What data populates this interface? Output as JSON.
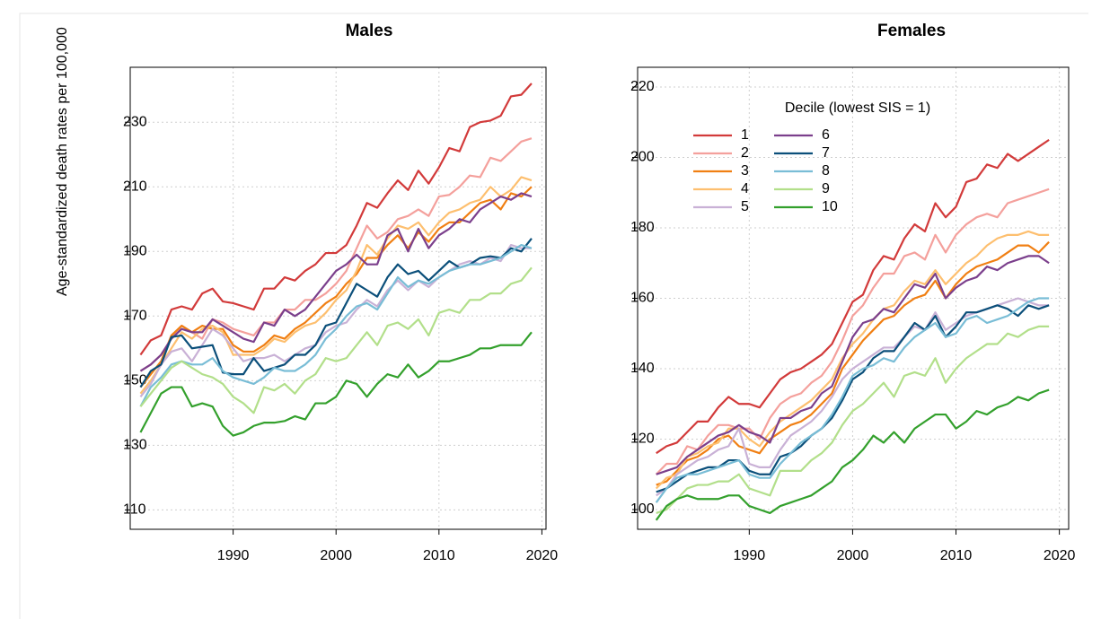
{
  "chart_data": [
    {
      "type": "line",
      "title": "Males",
      "ylabel": "Age-standardized death rates per 100,000",
      "x": [
        1981,
        1982,
        1983,
        1984,
        1985,
        1986,
        1987,
        1988,
        1989,
        1990,
        1991,
        1992,
        1993,
        1994,
        1995,
        1996,
        1997,
        1998,
        1999,
        2000,
        2001,
        2002,
        2003,
        2004,
        2005,
        2006,
        2007,
        2008,
        2009,
        2010,
        2011,
        2012,
        2013,
        2014,
        2015,
        2016,
        2017,
        2018,
        2019
      ],
      "xlim": [
        1980,
        2020.4
      ],
      "ylim": [
        104,
        247
      ],
      "xticks": [
        1990,
        2000,
        2010,
        2020
      ],
      "yticks": [
        110,
        130,
        150,
        170,
        190,
        210,
        230
      ],
      "grid": true,
      "series": [
        {
          "color": "#d23a3a",
          "values": [
            158,
            162.5,
            164,
            172,
            173,
            172,
            177,
            178.5,
            174.5,
            174,
            173,
            172,
            178.5,
            178.5,
            182,
            181,
            184,
            186,
            189.5,
            189.5,
            192,
            198,
            205,
            203.5,
            208,
            212,
            209,
            215,
            211,
            216,
            222,
            221,
            228.5,
            230,
            230.5,
            232,
            238,
            238.5,
            242
          ]
        },
        {
          "color": "#f4a09c",
          "values": [
            153,
            155,
            158,
            163,
            167,
            165,
            163,
            169,
            168,
            166,
            165,
            164,
            168,
            168,
            172,
            172,
            175,
            175,
            177,
            180,
            184,
            191,
            198,
            194,
            196,
            200,
            201,
            203,
            201,
            207,
            207.5,
            210,
            213.5,
            213,
            219,
            218,
            221,
            224,
            225
          ]
        },
        {
          "color": "#f07f13",
          "values": [
            148,
            152,
            156,
            164,
            167,
            165,
            167,
            166,
            166,
            161,
            159,
            159,
            161,
            164,
            163,
            166,
            168,
            171,
            174,
            176,
            180,
            183,
            188,
            188,
            192,
            195,
            191,
            196,
            193,
            197,
            199,
            199,
            202,
            205,
            206,
            203,
            208,
            207,
            210
          ]
        },
        {
          "color": "#fdbf6f",
          "values": [
            146,
            150,
            155,
            160,
            165,
            163,
            166,
            167,
            165,
            158,
            158,
            158,
            160,
            163,
            162,
            165,
            167,
            168,
            171,
            175,
            178,
            184,
            192,
            189,
            194,
            198,
            197,
            199,
            195,
            199,
            202,
            203,
            205,
            206,
            210,
            207,
            209,
            213,
            212
          ]
        },
        {
          "color": "#c9b1d6",
          "values": [
            145,
            149,
            155,
            159,
            160,
            156,
            161,
            166,
            164,
            160,
            156,
            157,
            157,
            158,
            156,
            158,
            160,
            161,
            165,
            167,
            168,
            172,
            175,
            173,
            178,
            181,
            178,
            181,
            179,
            182,
            184,
            186,
            187,
            186,
            188,
            187,
            192,
            191,
            191
          ]
        },
        {
          "color": "#7b3f8c",
          "values": [
            153,
            155,
            158,
            163,
            166,
            165,
            165,
            169,
            167,
            165,
            163,
            162,
            168,
            167,
            172,
            170,
            172,
            176,
            180,
            184,
            186,
            189,
            186,
            186,
            195,
            197,
            190,
            197,
            191,
            195,
            197,
            200,
            199,
            203,
            205,
            207,
            206,
            208,
            207
          ]
        },
        {
          "color": "#0b4f7a",
          "values": [
            148,
            153,
            155,
            163.5,
            164,
            160,
            160.5,
            161,
            152.5,
            152,
            152,
            157,
            153,
            154,
            155,
            158,
            158,
            161,
            167,
            168,
            174,
            180,
            178,
            176,
            182,
            186,
            183,
            184,
            181,
            184,
            187,
            185,
            186,
            188,
            188.5,
            188,
            191,
            190,
            194
          ]
        },
        {
          "color": "#79bdd6",
          "values": [
            142,
            148,
            151,
            155,
            156,
            155,
            155,
            157,
            153,
            151,
            150,
            149,
            151,
            154,
            153,
            153,
            155,
            158,
            163,
            166,
            170,
            173,
            174,
            172,
            177,
            182,
            179,
            181,
            180,
            182,
            184,
            185,
            186,
            186,
            187,
            188,
            190,
            192,
            191
          ]
        },
        {
          "color": "#b2df8a",
          "values": [
            142,
            146,
            150,
            154,
            156,
            154,
            152,
            151,
            149,
            145,
            143,
            140,
            148,
            147,
            149,
            146,
            150,
            152,
            157,
            156,
            157,
            161,
            165,
            161,
            167,
            168,
            166,
            169,
            164,
            171,
            172,
            171,
            175,
            175,
            177,
            177,
            180,
            181,
            185
          ]
        },
        {
          "color": "#33a02c",
          "values": [
            134,
            140,
            146,
            148,
            148,
            142,
            143,
            142,
            136,
            133,
            134,
            136,
            137,
            137,
            137.5,
            139,
            138,
            143,
            143,
            145,
            150,
            149,
            145,
            149,
            152,
            151,
            155,
            151,
            153,
            156,
            156,
            157,
            158,
            160,
            160,
            161,
            161,
            161,
            165
          ]
        }
      ]
    },
    {
      "type": "line",
      "title": "Females",
      "legend": true,
      "legend_title": "Decile (lowest SIS = 1)",
      "x": [
        1981,
        1982,
        1983,
        1984,
        1985,
        1986,
        1987,
        1988,
        1989,
        1990,
        1991,
        1992,
        1993,
        1994,
        1995,
        1996,
        1997,
        1998,
        1999,
        2000,
        2001,
        2002,
        2003,
        2004,
        2005,
        2006,
        2007,
        2008,
        2009,
        2010,
        2011,
        2012,
        2013,
        2014,
        2015,
        2016,
        2017,
        2018,
        2019
      ],
      "xlim": [
        1979.2,
        2020.9
      ],
      "ylim": [
        94.4,
        225.6
      ],
      "xticks": [
        1990,
        2000,
        2010,
        2020
      ],
      "yticks": [
        100,
        120,
        140,
        160,
        180,
        200,
        220
      ],
      "grid": true,
      "series": [
        {
          "name": "1",
          "color": "#d23a3a",
          "values": [
            116,
            118,
            119,
            122,
            125,
            125,
            129,
            132,
            130,
            130,
            129,
            133,
            137,
            139,
            140,
            142,
            144,
            147,
            153,
            159,
            161,
            168,
            172,
            171,
            177,
            181,
            179,
            187,
            183,
            186,
            193,
            194,
            198,
            197,
            201,
            199,
            201,
            203,
            205
          ]
        },
        {
          "name": "2",
          "color": "#f4a09c",
          "values": [
            110,
            113,
            113,
            118,
            117,
            121,
            124,
            124,
            123,
            123,
            120,
            126,
            130,
            132,
            133,
            136,
            138,
            142,
            148,
            155,
            158,
            163,
            167,
            167,
            172,
            173,
            171,
            178,
            173,
            178,
            181,
            183,
            184,
            183,
            187,
            188,
            189,
            190,
            191
          ]
        },
        {
          "name": "3",
          "color": "#f07f13",
          "values": [
            107,
            108,
            111,
            114,
            115,
            117,
            120,
            121,
            118,
            117,
            116,
            120,
            122,
            124,
            125,
            127,
            130,
            133,
            140,
            144,
            148,
            151,
            154,
            155,
            158,
            160,
            161,
            165,
            160,
            164,
            167,
            169,
            170,
            171,
            173,
            175,
            175,
            173,
            176
          ]
        },
        {
          "name": "4",
          "color": "#fdbf6f",
          "values": [
            106,
            109,
            110,
            115,
            116,
            118,
            119,
            123,
            123,
            120,
            118,
            122,
            125,
            127,
            129,
            131,
            134,
            137,
            143,
            147,
            150,
            154,
            157,
            158,
            162,
            165,
            164,
            168,
            164,
            167,
            170,
            172,
            175,
            177,
            178,
            178,
            179,
            178,
            178
          ]
        },
        {
          "name": "5",
          "color": "#c9b1d6",
          "values": [
            104,
            106,
            110,
            112,
            114,
            115,
            117,
            118,
            123,
            113,
            112,
            112,
            117,
            121,
            123,
            125,
            128,
            132,
            137,
            140,
            142,
            144,
            146,
            146,
            149,
            152,
            151,
            156,
            151,
            153,
            155,
            156,
            157,
            158,
            159,
            160,
            159,
            158,
            158
          ]
        },
        {
          "name": "6",
          "color": "#7b3f8c",
          "values": [
            110,
            111,
            112,
            115,
            117,
            119,
            121,
            122,
            124,
            122,
            121,
            119,
            126,
            126,
            128,
            129,
            133,
            135,
            142,
            149,
            153,
            154,
            157,
            156,
            160,
            164,
            163,
            167,
            160,
            163,
            165,
            166,
            169,
            168,
            170,
            171,
            172,
            172,
            170
          ]
        },
        {
          "name": "7",
          "color": "#0b4f7a",
          "values": [
            105,
            106,
            108,
            110,
            111,
            112,
            112,
            114,
            114,
            111,
            110,
            110,
            115,
            116,
            118,
            121,
            123,
            126,
            131,
            137,
            139,
            143,
            145,
            145,
            149,
            153,
            151,
            155,
            149,
            152,
            156,
            156,
            157,
            158,
            157,
            155,
            158,
            157,
            158
          ]
        },
        {
          "name": "8",
          "color": "#79bdd6",
          "values": [
            102,
            106,
            109,
            110,
            110,
            111,
            112,
            113,
            114,
            110,
            109,
            109,
            113,
            116,
            119,
            121,
            123,
            127,
            132,
            138,
            140,
            141,
            143,
            142,
            146,
            149,
            151,
            153,
            149,
            150,
            154,
            155,
            153,
            154,
            155,
            157,
            159,
            160,
            160
          ]
        },
        {
          "name": "9",
          "color": "#b2df8a",
          "values": [
            99,
            100,
            103,
            106,
            107,
            107,
            108,
            108,
            110,
            106,
            105,
            104,
            111,
            111,
            111,
            114,
            116,
            119,
            124,
            128,
            130,
            133,
            136,
            132,
            138,
            139,
            138,
            143,
            136,
            140,
            143,
            145,
            147,
            147,
            150,
            149,
            151,
            152,
            152
          ]
        },
        {
          "name": "10",
          "color": "#33a02c",
          "values": [
            97,
            101,
            103,
            104,
            103,
            103,
            103,
            104,
            104,
            101,
            100,
            99,
            101,
            102,
            103,
            104,
            106,
            108,
            112,
            114,
            117,
            121,
            119,
            122,
            119,
            123,
            125,
            127,
            127,
            123,
            125,
            128,
            127,
            129,
            130,
            132,
            131,
            133,
            134
          ]
        }
      ]
    }
  ]
}
